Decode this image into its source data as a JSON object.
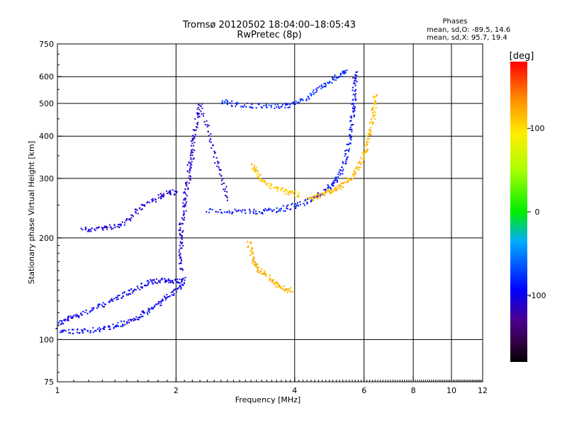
{
  "chart_data": {
    "type": "scatter",
    "title": "Tromsø 20120502 18:04:00–18:05:43",
    "subtitle": "RwPretec (8p)",
    "xlabel": "Frequency [MHz]",
    "ylabel": "Stationary phase Virtual Height [km]",
    "x_scale": "log",
    "y_scale": "log",
    "xlim": [
      1,
      12
    ],
    "ylim": [
      75,
      750
    ],
    "x_ticks": [
      "1",
      "2",
      "4",
      "6",
      "8",
      "10",
      "12"
    ],
    "x_tick_values": [
      1,
      2,
      4,
      6,
      8,
      10,
      12
    ],
    "y_ticks": [
      "75",
      "100",
      "200",
      "300",
      "400",
      "500",
      "600",
      "750"
    ],
    "y_tick_values": [
      75,
      100,
      200,
      300,
      400,
      500,
      600,
      750
    ],
    "grid": true,
    "info": {
      "heading": "Phases",
      "line1": "mean, sd,O: -89.5, 14.6",
      "line2": "mean, sd,X:  95.7, 19.4"
    },
    "colorbar": {
      "label": "[deg]",
      "range": [
        -180,
        180
      ],
      "ticks": [
        "100",
        "0",
        "-100"
      ],
      "tick_values": [
        100,
        0,
        -100
      ]
    },
    "series": [
      {
        "trace": "O-low",
        "phase": -100,
        "points": [
          [
            1.0,
            112
          ],
          [
            1.05,
            115
          ],
          [
            1.1,
            118
          ],
          [
            1.2,
            122
          ],
          [
            1.3,
            127
          ],
          [
            1.4,
            133
          ],
          [
            1.5,
            138
          ],
          [
            1.6,
            143
          ],
          [
            1.7,
            148
          ],
          [
            1.8,
            150
          ],
          [
            1.9,
            150
          ],
          [
            2.0,
            150
          ],
          [
            2.1,
            151
          ]
        ]
      },
      {
        "trace": "O-low-2",
        "phase": -95,
        "points": [
          [
            1.0,
            107
          ],
          [
            1.1,
            106
          ],
          [
            1.2,
            107
          ],
          [
            1.3,
            108
          ],
          [
            1.4,
            110
          ],
          [
            1.5,
            113
          ],
          [
            1.6,
            117
          ],
          [
            1.7,
            122
          ],
          [
            1.8,
            128
          ],
          [
            1.9,
            135
          ],
          [
            2.0,
            142
          ],
          [
            2.1,
            148
          ]
        ]
      },
      {
        "trace": "Es",
        "phase": -105,
        "points": [
          [
            1.15,
            212
          ],
          [
            1.25,
            214
          ],
          [
            1.35,
            216
          ],
          [
            1.45,
            220
          ],
          [
            1.55,
            235
          ],
          [
            1.65,
            250
          ],
          [
            1.8,
            265
          ],
          [
            1.9,
            272
          ],
          [
            2.0,
            275
          ]
        ]
      },
      {
        "trace": "E-F-vertical",
        "phase": -110,
        "points": [
          [
            2.05,
            160
          ],
          [
            2.05,
            180
          ],
          [
            2.05,
            200
          ],
          [
            2.05,
            220
          ],
          [
            2.1,
            245
          ],
          [
            2.1,
            270
          ],
          [
            2.15,
            300
          ],
          [
            2.15,
            330
          ],
          [
            2.2,
            360
          ],
          [
            2.2,
            400
          ],
          [
            2.25,
            450
          ],
          [
            2.3,
            500
          ],
          [
            2.4,
            420
          ],
          [
            2.5,
            350
          ],
          [
            2.6,
            300
          ],
          [
            2.7,
            260
          ]
        ]
      },
      {
        "trace": "F-O",
        "phase": -90,
        "points": [
          [
            2.4,
            242
          ],
          [
            2.7,
            240
          ],
          [
            3.0,
            240
          ],
          [
            3.3,
            241
          ],
          [
            3.6,
            243
          ],
          [
            3.9,
            248
          ],
          [
            4.2,
            255
          ],
          [
            4.5,
            265
          ],
          [
            4.8,
            278
          ],
          [
            5.0,
            292
          ],
          [
            5.2,
            312
          ],
          [
            5.35,
            340
          ],
          [
            5.45,
            380
          ],
          [
            5.55,
            430
          ],
          [
            5.6,
            480
          ],
          [
            5.63,
            520
          ],
          [
            5.66,
            580
          ],
          [
            5.68,
            620
          ]
        ]
      },
      {
        "trace": "F-upper",
        "phase": -80,
        "points": [
          [
            2.6,
            510
          ],
          [
            2.8,
            500
          ],
          [
            3.1,
            495
          ],
          [
            3.4,
            495
          ],
          [
            3.7,
            492
          ],
          [
            4.0,
            500
          ],
          [
            4.3,
            525
          ],
          [
            4.6,
            555
          ],
          [
            4.9,
            585
          ],
          [
            5.2,
            610
          ],
          [
            5.4,
            625
          ]
        ]
      },
      {
        "trace": "F-X",
        "phase": 115,
        "points": [
          [
            4.3,
            260
          ],
          [
            4.5,
            265
          ],
          [
            4.7,
            270
          ],
          [
            4.9,
            275
          ],
          [
            5.1,
            282
          ],
          [
            5.3,
            290
          ],
          [
            5.5,
            300
          ],
          [
            5.7,
            315
          ],
          [
            5.85,
            335
          ],
          [
            6.0,
            360
          ],
          [
            6.1,
            390
          ],
          [
            6.2,
            420
          ],
          [
            6.3,
            460
          ],
          [
            6.35,
            500
          ],
          [
            6.4,
            540
          ]
        ]
      },
      {
        "trace": "Es-X",
        "phase": 110,
        "points": [
          [
            3.1,
            330
          ],
          [
            3.2,
            310
          ],
          [
            3.3,
            295
          ],
          [
            3.5,
            285
          ],
          [
            3.7,
            278
          ],
          [
            3.9,
            272
          ],
          [
            4.1,
            270
          ]
        ]
      },
      {
        "trace": "E-X",
        "phase": 120,
        "points": [
          [
            3.05,
            195
          ],
          [
            3.1,
            180
          ],
          [
            3.15,
            170
          ],
          [
            3.2,
            163
          ],
          [
            3.3,
            158
          ],
          [
            3.5,
            150
          ],
          [
            3.6,
            145
          ],
          [
            3.8,
            142
          ],
          [
            3.9,
            140
          ]
        ]
      }
    ]
  }
}
